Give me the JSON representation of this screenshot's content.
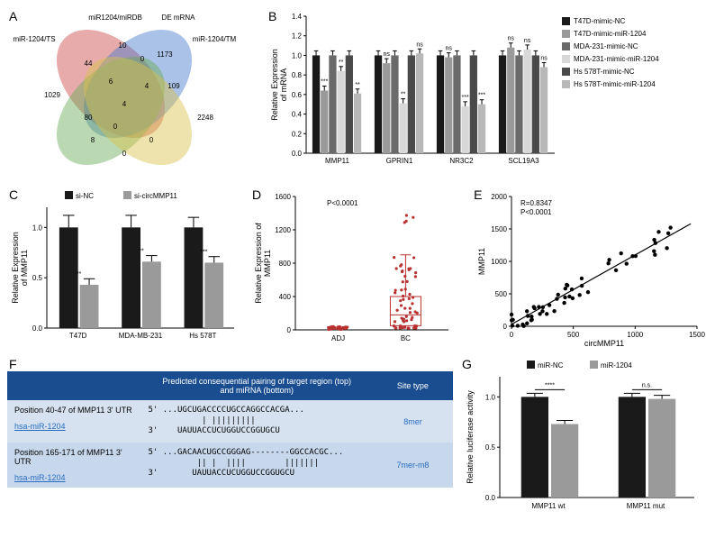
{
  "panelA": {
    "label": "A",
    "sets": [
      "miR1204/miRDB",
      "miR-1204/TS",
      "DE mRNA",
      "miR-1204/TM"
    ],
    "set_colors": [
      "#cc4444",
      "#4477cc",
      "#66aa55",
      "#d9c248"
    ],
    "counts": {
      "red_only": 10,
      "blue_only": 1029,
      "green_only": 1173,
      "yellow_only": 2248,
      "red_blue": 44,
      "red_green": 0,
      "red_yellow": 109,
      "blue_green": 80,
      "blue_yellow": 8,
      "green_yellow": 0,
      "rbg": 6,
      "rby": 0,
      "rgy": 4,
      "bgy": 0,
      "all": 4
    }
  },
  "panelB": {
    "label": "B",
    "legend": [
      "T47D-mimic-NC",
      "T47D-mimic-miR-1204",
      "MDA-231-mimic-NC",
      "MDA-231-mimic-miR-1204",
      "Hs 578T-mimic-NC",
      "Hs 578T-mimic-miR-1204"
    ],
    "legend_colors": [
      "#1a1a1a",
      "#9a9a9a",
      "#6a6a6a",
      "#d8d8d8",
      "#4a4a4a",
      "#b8b8b8"
    ],
    "genes": [
      "MMP11",
      "GPRIN1",
      "NR3C2",
      "SCL19A3"
    ],
    "values": [
      [
        1.0,
        0.64,
        1.0,
        0.84,
        1.0,
        0.61
      ],
      [
        1.0,
        0.92,
        1.0,
        0.51,
        1.0,
        1.02
      ],
      [
        1.0,
        0.98,
        1.0,
        0.48,
        1.0,
        0.5
      ],
      [
        1.0,
        1.08,
        1.0,
        1.06,
        1.0,
        0.88
      ]
    ],
    "sig": [
      [
        "***",
        "**",
        "**"
      ],
      [
        "ns",
        "**",
        "ns"
      ],
      [
        "ns",
        "***",
        "***"
      ],
      [
        "ns",
        "ns",
        "ns"
      ]
    ],
    "ylabel": "Relative Expression\nof mRNA",
    "ylim": [
      0,
      1.4
    ],
    "ytick_step": 0.2
  },
  "panelC": {
    "label": "C",
    "legend": [
      "si-NC",
      "si-circMMP11"
    ],
    "legend_colors": [
      "#1a1a1a",
      "#9a9a9a"
    ],
    "cells": [
      "T47D",
      "MDA-MB-231",
      "Hs 578T"
    ],
    "values": [
      [
        1.0,
        0.43
      ],
      [
        1.0,
        0.66
      ],
      [
        1.0,
        0.65
      ]
    ],
    "sig": [
      "**",
      "**",
      "***"
    ],
    "err": [
      [
        0.12,
        0.06
      ],
      [
        0.12,
        0.06
      ],
      [
        0.1,
        0.06
      ]
    ],
    "ylabel": "Relative Expression\nof MMP11",
    "ylim": [
      0,
      1.2
    ],
    "ytick_step": 0.5
  },
  "panelD": {
    "label": "D",
    "pval": "P<0.0001",
    "ylabel": "Relative Expression of\nMMP11",
    "xticks": [
      "ADJ",
      "BC"
    ],
    "ylim": [
      0,
      1600
    ],
    "ytick_step": 400,
    "adj_median": 20,
    "bc_median": 180,
    "bc_box": [
      50,
      400
    ],
    "dot_color": "#b83030"
  },
  "panelE": {
    "label": "E",
    "R": "R=0.8347",
    "pval": "P<0.0001",
    "xlabel": "circMMP11",
    "ylabel": "MMP11",
    "xlim": [
      0,
      1500
    ],
    "ylim": [
      0,
      2000
    ],
    "xtick_step": 500,
    "ytick_step": 500,
    "dot_color": "#000000",
    "line": {
      "x1": 0,
      "y1": 30,
      "x2": 1450,
      "y2": 1580
    }
  },
  "panelF": {
    "label": "F",
    "th1": "",
    "th2": "Predicted consequential pairing of target region (top)\nand miRNA (bottom)",
    "th3": "Site type",
    "rows": [
      {
        "pos": "Position 40-47 of MMP11 3' UTR",
        "mirna": "hsa-miR-1204",
        "top": "5' ...UGCUGACCCCUGCCAGGCCACGA...",
        "match": "           | |||||||||",
        "bot": "3'    UAUUACCUCUGGUCCGGUGCU",
        "site": "8mer"
      },
      {
        "pos": "Position 165-171 of MMP11 3' UTR",
        "mirna": "hsa-miR-1204",
        "top": "5' ...GACAACUGCCGGGAG--------GGCCACGC...",
        "match": "          || |  ||||        |||||||",
        "bot": "3'       UAUUACCUCUGGUCCGGUGCU",
        "site": "7mer-m8"
      }
    ]
  },
  "panelG": {
    "label": "G",
    "legend": [
      "miR-NC",
      "miR-1204"
    ],
    "legend_colors": [
      "#1a1a1a",
      "#9a9a9a"
    ],
    "groups": [
      "MMP11 wt",
      "MMP11 mut"
    ],
    "values": [
      [
        1.0,
        0.73
      ],
      [
        1.0,
        0.98
      ]
    ],
    "sig": [
      "****",
      "n.s."
    ],
    "ylabel": "Relative luciferase activity",
    "ylim": [
      0,
      1.2
    ],
    "ytick_step": 0.5
  }
}
